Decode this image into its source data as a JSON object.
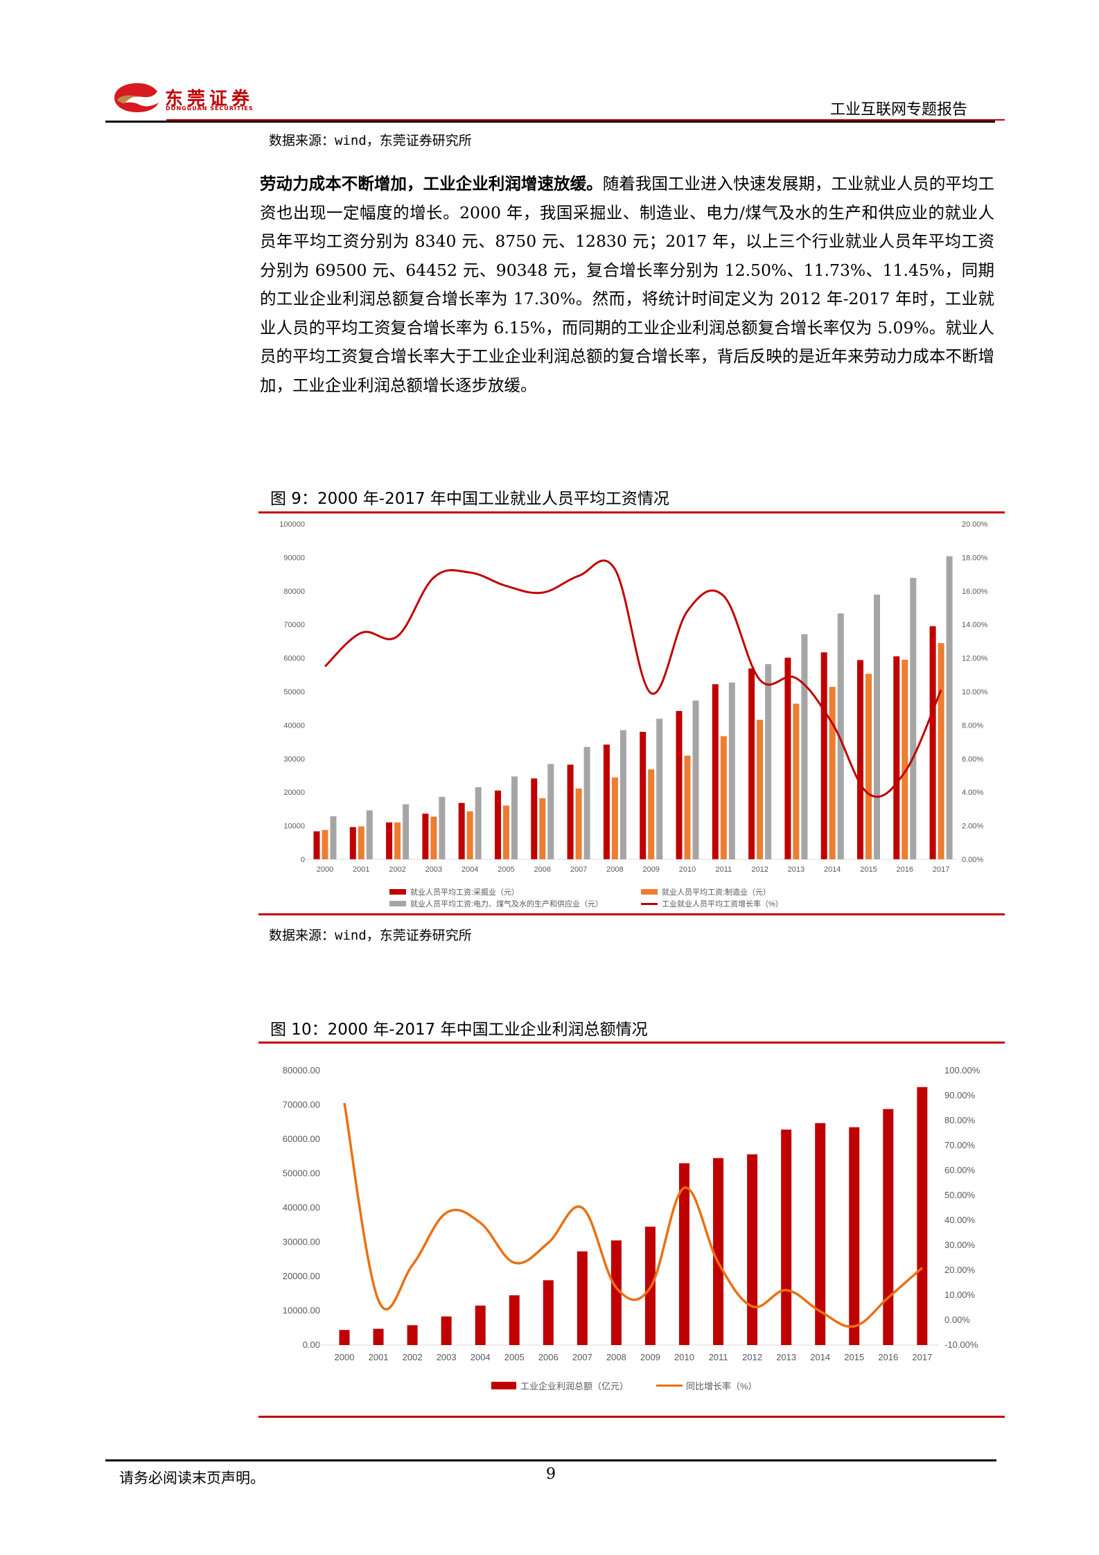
{
  "header": {
    "logo_cn": "东莞证券",
    "logo_en": "DONGGUAN SECURITIES",
    "report_title": "工业互联网专题报告"
  },
  "source_top": "数据来源：wind，东莞证券研究所",
  "paragraph": {
    "bold_lead": "劳动力成本不断增加，工业企业利润增速放缓。",
    "body": "随着我国工业进入快速发展期，工业就业人员的平均工资也出现一定幅度的增长。2000 年，我国采掘业、制造业、电力/煤气及水的生产和供应业的就业人员年平均工资分别为 8340 元、8750 元、12830 元；2017 年，以上三个行业就业人员年平均工资分别为 69500 元、64452 元、90348 元，复合增长率分别为 12.50%、11.73%、11.45%，同期的工业企业利润总额复合增长率为 17.30%。然而，将统计时间定义为 2012 年-2017 年时，工业就业人员的平均工资复合增长率为 6.15%，而同期的工业企业利润总额复合增长率仅为 5.09%。就业人员的平均工资复合增长率大于工业企业利润总额的复合增长率，背后反映的是近年来劳动力成本不断增加，工业企业利润总额增长逐步放缓。"
  },
  "figure9": {
    "title": "图 9：2000 年-2017 年中国工业就业人员平均工资情况",
    "source": "数据来源：wind，东莞证券研究所"
  },
  "figure10": {
    "title": "图 10：2000 年-2017 年中国工业企业利润总额情况"
  },
  "footer": {
    "disclaimer": "请务必阅读末页声明。",
    "page_number": "9"
  },
  "colors": {
    "brand_red": "#c00000",
    "mining": "#c00000",
    "manufacturing": "#ed7d31",
    "utilities": "#a5a5a5",
    "growth_line_fig9": "#c00000",
    "growth_line_fig10": "#e97012"
  },
  "chart_data": [
    {
      "type": "bar",
      "title": "图 9：2000 年-2017 年中国工业就业人员平均工资情况",
      "categories": [
        "2000",
        "2001",
        "2002",
        "2003",
        "2004",
        "2005",
        "2006",
        "2007",
        "2008",
        "2009",
        "2010",
        "2011",
        "2012",
        "2013",
        "2014",
        "2015",
        "2016",
        "2017"
      ],
      "y_left_ticks": [
        "0",
        "10000",
        "20000",
        "30000",
        "40000",
        "50000",
        "60000",
        "70000",
        "80000",
        "90000",
        "100000"
      ],
      "y_right_ticks": [
        "0.00%",
        "2.00%",
        "4.00%",
        "6.00%",
        "8.00%",
        "10.00%",
        "12.00%",
        "14.00%",
        "16.00%",
        "18.00%",
        "20.00%"
      ],
      "ylim_left": [
        0,
        100000
      ],
      "ylim_right": [
        0,
        20
      ],
      "legend_position": "bottom",
      "series": [
        {
          "name": "就业人员平均工资:采掘业（元）",
          "type": "bar",
          "axis": "left",
          "values": [
            8340,
            9600,
            11000,
            13600,
            16800,
            20500,
            24100,
            28200,
            34200,
            38000,
            44200,
            52200,
            56900,
            60100,
            61700,
            59400,
            60500,
            69500
          ]
        },
        {
          "name": "就业人员平均工资:制造业（元）",
          "type": "bar",
          "axis": "left",
          "values": [
            8750,
            9800,
            11000,
            12700,
            14300,
            16000,
            18200,
            21100,
            24400,
            26800,
            30900,
            36700,
            41600,
            46400,
            51400,
            55300,
            59500,
            64452
          ]
        },
        {
          "name": "就业人员平均工资:电力、煤气及水的生产和供应业（元）",
          "type": "bar",
          "axis": "left",
          "values": [
            12830,
            14600,
            16400,
            18600,
            21500,
            24700,
            28400,
            33500,
            38500,
            41900,
            47300,
            52700,
            58200,
            67100,
            73300,
            78900,
            83900,
            90348
          ]
        },
        {
          "name": "工业就业人员平均工资增长率（%）",
          "type": "line",
          "axis": "right",
          "values": [
            11.5,
            13.5,
            13.3,
            16.8,
            17.1,
            16.3,
            15.9,
            16.9,
            17.3,
            9.9,
            14.8,
            15.7,
            10.7,
            10.8,
            8.1,
            3.9,
            5.2,
            10.1
          ]
        }
      ]
    },
    {
      "type": "bar",
      "title": "图 10：2000 年-2017 年中国工业企业利润总额情况",
      "categories": [
        "2000",
        "2001",
        "2002",
        "2003",
        "2004",
        "2005",
        "2006",
        "2007",
        "2008",
        "2009",
        "2010",
        "2011",
        "2012",
        "2013",
        "2014",
        "2015",
        "2016",
        "2017"
      ],
      "y_left_ticks": [
        "0.00",
        "10000.00",
        "20000.00",
        "30000.00",
        "40000.00",
        "50000.00",
        "60000.00",
        "70000.00",
        "80000.00"
      ],
      "y_right_ticks": [
        "-10.00%",
        "0.00%",
        "10.00%",
        "20.00%",
        "30.00%",
        "40.00%",
        "50.00%",
        "60.00%",
        "70.00%",
        "80.00%",
        "90.00%",
        "100.00%"
      ],
      "ylim_left": [
        0,
        80000
      ],
      "ylim_right": [
        -10,
        100
      ],
      "legend_position": "bottom",
      "series": [
        {
          "name": "工业企业利润总额（亿元）",
          "type": "bar",
          "axis": "left",
          "values": [
            4393,
            4733,
            5785,
            8337,
            11500,
            14500,
            18900,
            27300,
            30500,
            34500,
            53000,
            54500,
            55600,
            62800,
            64700,
            63500,
            68800,
            75200
          ]
        },
        {
          "name": "同比增长率（%）",
          "type": "line",
          "axis": "right",
          "values": [
            87,
            8,
            22,
            43,
            39,
            23,
            31,
            45,
            13,
            13,
            53,
            23,
            5.5,
            12,
            3.5,
            -2.5,
            9,
            21
          ]
        }
      ]
    }
  ]
}
